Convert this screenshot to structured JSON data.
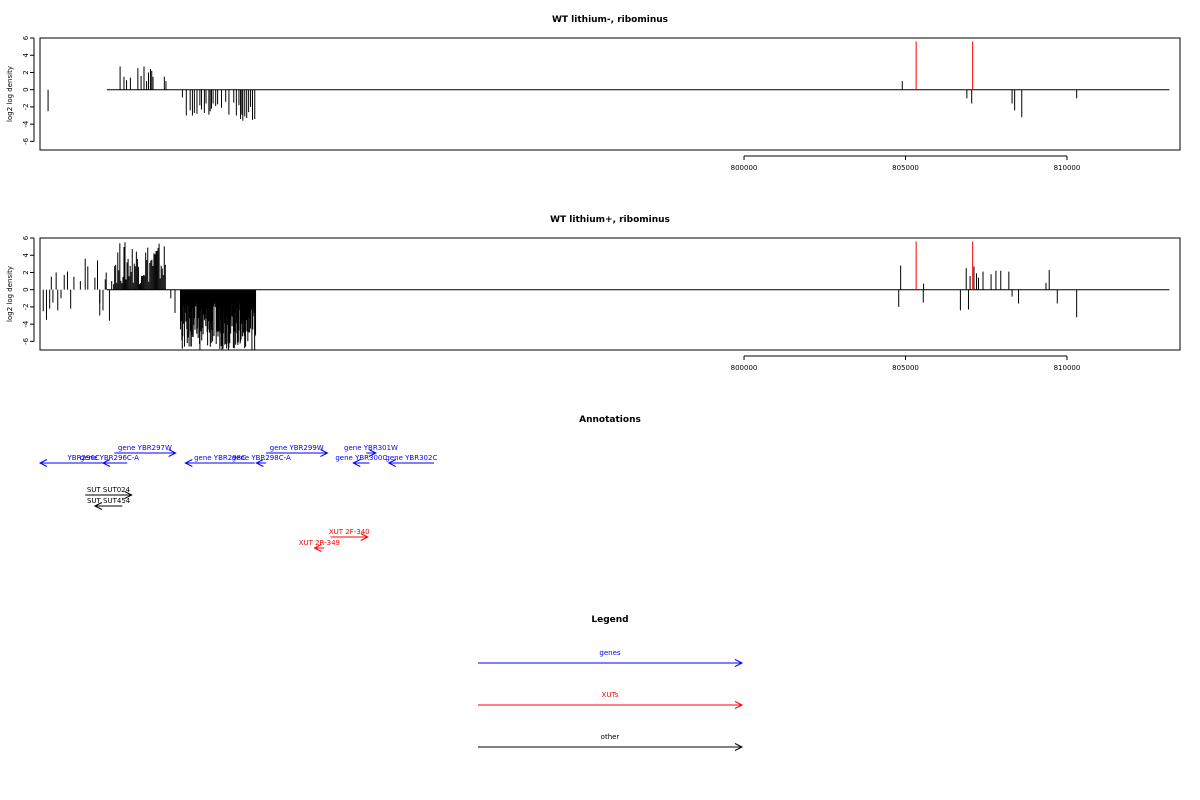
{
  "colors": {
    "genes": "#0000ff",
    "xuts": "#ff0000",
    "other": "#000000",
    "highlight": "#ff0000"
  },
  "chart_data": [
    {
      "type": "bar",
      "title": "WT lithium-, ribominus",
      "ylabel": "log2 log density",
      "xlim": [
        778200,
        813500
      ],
      "ylim": [
        -7,
        6
      ],
      "yticks": [
        -6,
        -4,
        -2,
        0,
        2,
        4,
        6
      ],
      "xticks": [
        800000,
        805000,
        810000
      ],
      "highlight_positions": [
        805330,
        807080
      ],
      "highlight_height": 5.6,
      "bars": [
        [
          778450,
          -2.5
        ],
        [
          780680,
          2.7
        ],
        [
          780800,
          1.5
        ],
        [
          780880,
          1.1
        ],
        [
          781000,
          1.4
        ],
        [
          781230,
          2.5
        ],
        [
          781330,
          1.6
        ],
        [
          781420,
          2.7
        ],
        [
          781500,
          1.0
        ],
        [
          781560,
          2.0
        ],
        [
          781620,
          2.4
        ],
        [
          781660,
          2.2
        ],
        [
          781700,
          1.5
        ],
        [
          782050,
          1.5
        ],
        [
          782100,
          1.0
        ],
        [
          782610,
          -0.9
        ],
        [
          782730,
          -3.0
        ],
        [
          782850,
          -2.4
        ],
        [
          782920,
          -3.0
        ],
        [
          782980,
          -2.7
        ],
        [
          783060,
          -2.8
        ],
        [
          783150,
          -1.8
        ],
        [
          783200,
          -2.3
        ],
        [
          783290,
          -2.7
        ],
        [
          783340,
          -1.6
        ],
        [
          783430,
          -2.9
        ],
        [
          783470,
          -2.5
        ],
        [
          783510,
          -2.2
        ],
        [
          783560,
          -1.6
        ],
        [
          783640,
          -1.9
        ],
        [
          783700,
          -1.7
        ],
        [
          783820,
          -2.1
        ],
        [
          783950,
          -1.4
        ],
        [
          784050,
          -2.9
        ],
        [
          784200,
          -1.5
        ],
        [
          784280,
          -3.0
        ],
        [
          784360,
          -1.8
        ],
        [
          784410,
          -3.4
        ],
        [
          784450,
          -2.9
        ],
        [
          784480,
          -3.6
        ],
        [
          784540,
          -3.1
        ],
        [
          784600,
          -3.3
        ],
        [
          784660,
          -2.6
        ],
        [
          784720,
          -2.0
        ],
        [
          784780,
          -3.5
        ],
        [
          784850,
          -3.4
        ],
        [
          804900,
          1.0
        ],
        [
          806900,
          -1.0
        ],
        [
          807050,
          -1.6
        ],
        [
          808300,
          -1.6
        ],
        [
          808380,
          -2.4
        ],
        [
          808600,
          -3.2
        ],
        [
          810300,
          -1.0
        ]
      ]
    },
    {
      "type": "bar",
      "title": "WT lithium+, ribominus",
      "ylabel": "log2 log density",
      "xlim": [
        778200,
        813500
      ],
      "ylim": [
        -7,
        6
      ],
      "yticks": [
        -6,
        -4,
        -2,
        0,
        2,
        4,
        6
      ],
      "xticks": [
        800000,
        805000,
        810000
      ],
      "highlight_positions": [
        805330,
        807080
      ],
      "highlight_height": 5.6,
      "dense_regions": [
        {
          "start": 780480,
          "end": 782100,
          "min": 0.6,
          "max": 5.6,
          "step": 32
        },
        {
          "start": 782550,
          "end": 784880,
          "min": -7.0,
          "max": -1.5,
          "step": 14
        }
      ],
      "bars": [
        [
          778300,
          -2.5
        ],
        [
          778400,
          -3.5
        ],
        [
          778500,
          -2.2
        ],
        [
          778550,
          1.5
        ],
        [
          778600,
          -1.5
        ],
        [
          778700,
          2.0
        ],
        [
          778750,
          -2.4
        ],
        [
          778850,
          -1.0
        ],
        [
          778950,
          1.7
        ],
        [
          779050,
          2.1
        ],
        [
          779150,
          -2.2
        ],
        [
          779250,
          1.5
        ],
        [
          779450,
          1.0
        ],
        [
          779600,
          3.6
        ],
        [
          779680,
          2.7
        ],
        [
          779900,
          1.4
        ],
        [
          780050,
          -3.0
        ],
        [
          780150,
          -2.4
        ],
        [
          780250,
          2.0
        ],
        [
          780350,
          -3.6
        ],
        [
          780420,
          1.0
        ],
        [
          779980,
          3.4
        ],
        [
          780050,
          -1.6
        ],
        [
          780220,
          1.2
        ],
        [
          782250,
          -1.0
        ],
        [
          782380,
          -2.7
        ],
        [
          804850,
          2.8
        ],
        [
          804790,
          -2.0
        ],
        [
          805550,
          -1.5
        ],
        [
          805560,
          0.7
        ],
        [
          806700,
          -2.4
        ],
        [
          806880,
          2.5
        ],
        [
          806950,
          -2.3
        ],
        [
          807000,
          1.6
        ],
        [
          807120,
          2.7
        ],
        [
          807200,
          1.9
        ],
        [
          807260,
          1.4
        ],
        [
          807400,
          2.1
        ],
        [
          807650,
          1.8
        ],
        [
          807800,
          2.2
        ],
        [
          807950,
          2.2
        ],
        [
          808200,
          2.1
        ],
        [
          808300,
          -0.8
        ],
        [
          808500,
          -1.6
        ],
        [
          809350,
          0.8
        ],
        [
          809450,
          2.3
        ],
        [
          809700,
          -1.6
        ],
        [
          810300,
          -3.2
        ]
      ]
    }
  ],
  "annotations": {
    "title": "Annotations",
    "xlim": [
      778200,
      813500
    ],
    "tracks": [
      {
        "label": "YBR296C",
        "start": 778200,
        "end": 780900,
        "strand": "-",
        "row": 0,
        "kind": "genes"
      },
      {
        "label": "gene YBR296C-A",
        "start": 780150,
        "end": 780550,
        "strand": "-",
        "row": 0,
        "kind": "genes"
      },
      {
        "label": "gene YBR297W",
        "start": 780500,
        "end": 782400,
        "strand": "+",
        "row": 1,
        "kind": "genes"
      },
      {
        "label": "gene YBR298C",
        "start": 782700,
        "end": 784850,
        "strand": "-",
        "row": 0,
        "kind": "genes"
      },
      {
        "label": "gene YBR298C-A",
        "start": 784900,
        "end": 785200,
        "strand": "-",
        "row": 0,
        "kind": "genes"
      },
      {
        "label": "gene YBR299W",
        "start": 785200,
        "end": 787100,
        "strand": "+",
        "row": 1,
        "kind": "genes"
      },
      {
        "label": "gene YBR300C",
        "start": 787900,
        "end": 788400,
        "strand": "-",
        "row": 0,
        "kind": "genes"
      },
      {
        "label": "gene YBR301W",
        "start": 788300,
        "end": 788600,
        "strand": "+",
        "row": 1,
        "kind": "genes"
      },
      {
        "label": "gene YBR302C",
        "start": 789000,
        "end": 790400,
        "strand": "-",
        "row": 0,
        "kind": "genes"
      },
      {
        "label": "SUT SUT024",
        "start": 779600,
        "end": 781040,
        "strand": "+",
        "row": 2,
        "kind": "other"
      },
      {
        "label": "SUT SUT454",
        "start": 779900,
        "end": 780750,
        "strand": "-",
        "row": 3,
        "kind": "other"
      },
      {
        "label": "XUT 2F-340",
        "start": 787200,
        "end": 788350,
        "strand": "+",
        "row": 4,
        "kind": "xuts"
      },
      {
        "label": "XUT 2R-349",
        "start": 786700,
        "end": 787000,
        "strand": "-",
        "row": 5,
        "kind": "xuts"
      }
    ]
  },
  "legend": {
    "title": "Legend",
    "items": [
      {
        "label": "genes",
        "kind": "genes"
      },
      {
        "label": "XUTs",
        "kind": "xuts"
      },
      {
        "label": "other",
        "kind": "other"
      }
    ]
  }
}
